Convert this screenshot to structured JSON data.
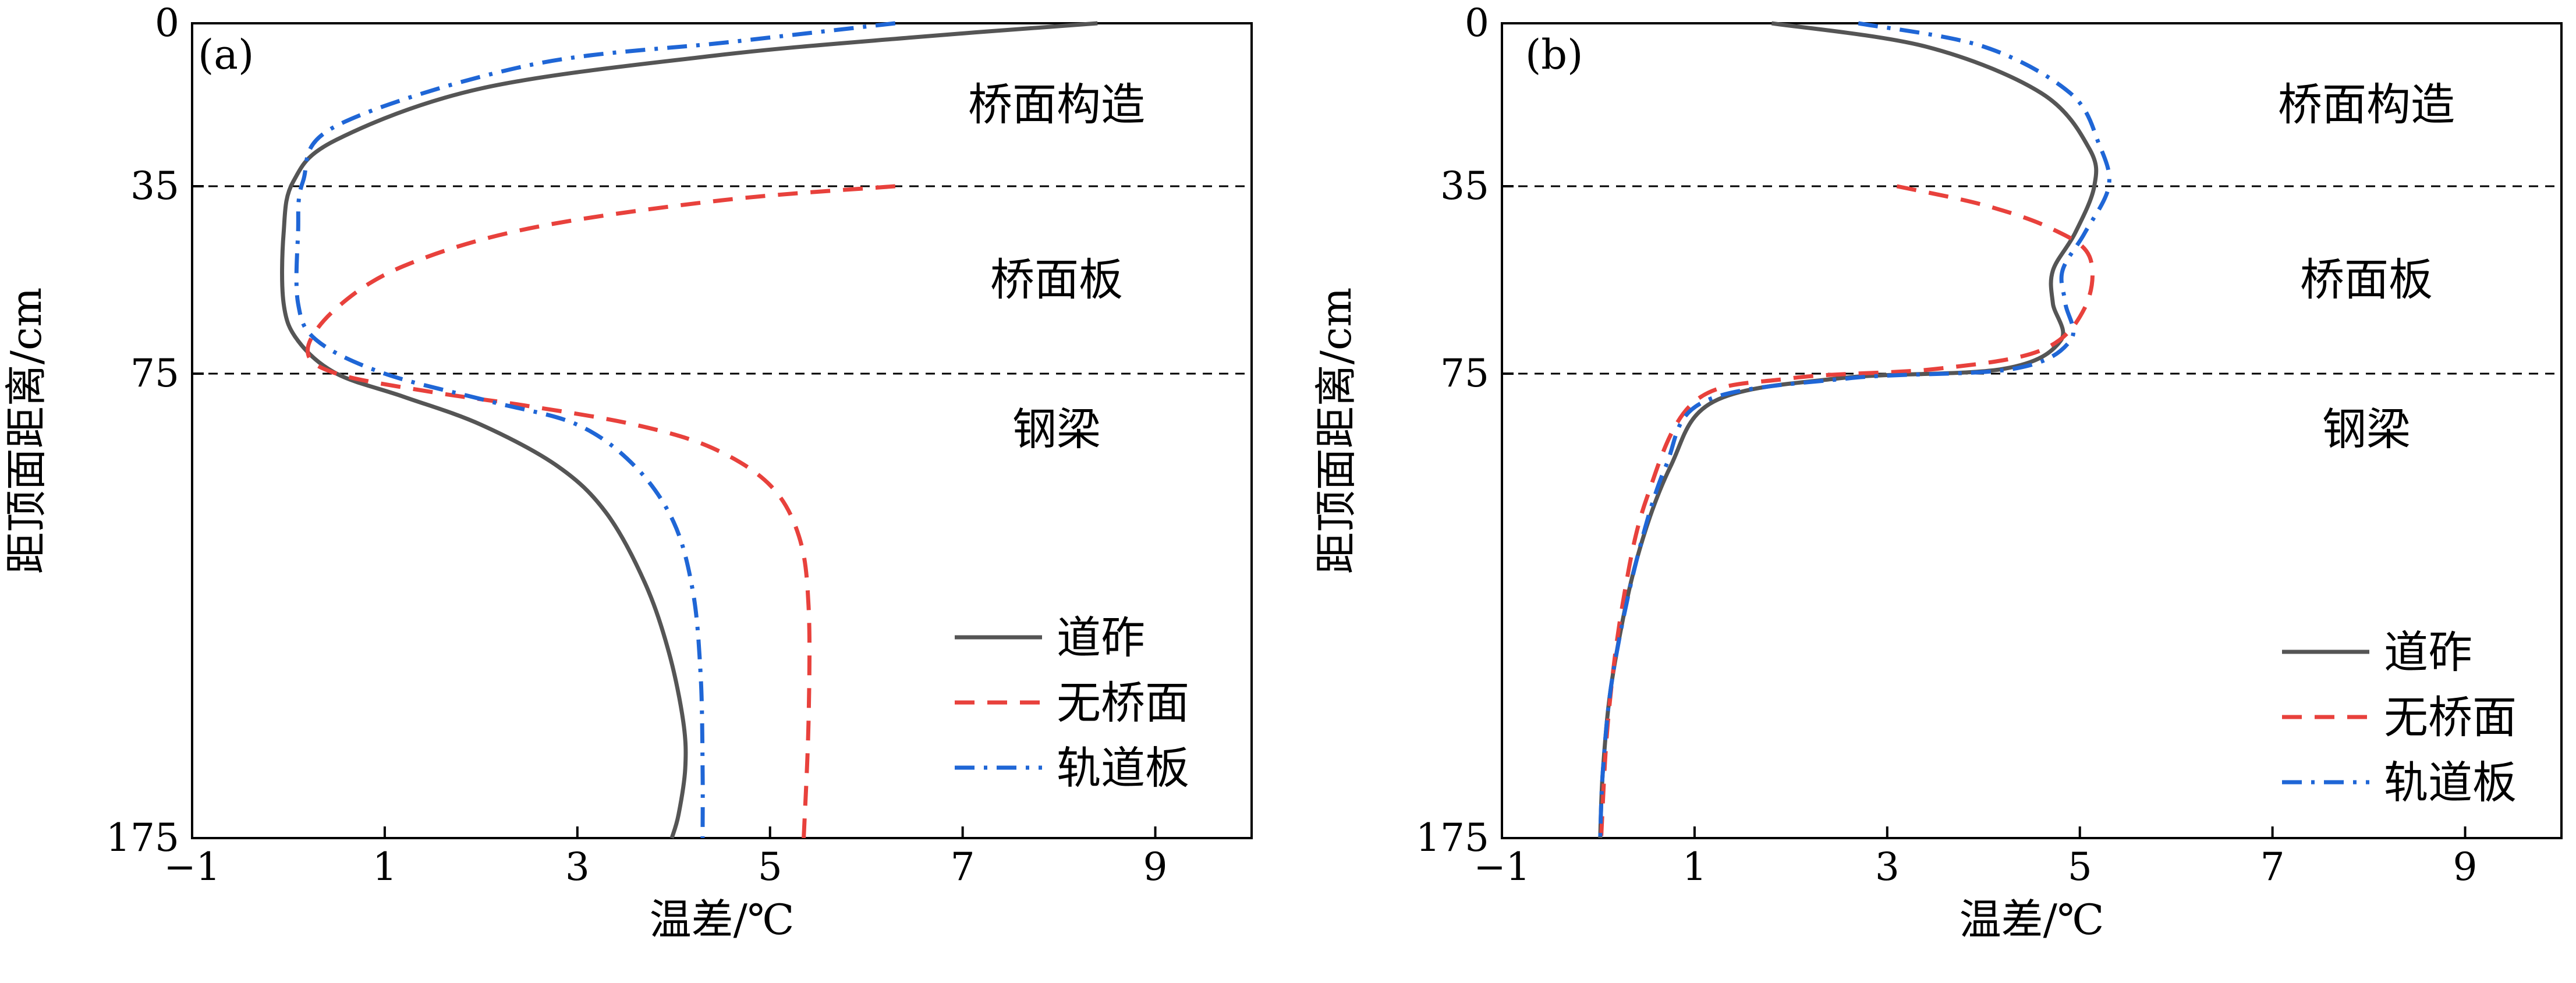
{
  "figure": {
    "y_axis_label": "距顶面距离/cm",
    "x_axis_label": "温差/℃"
  },
  "legend": {
    "items": [
      {
        "label": "道砟",
        "color": "#555555",
        "dash": "solid"
      },
      {
        "label": "无桥面",
        "color": "#e8413c",
        "dash": "dashed"
      },
      {
        "label": "轨道板",
        "color": "#1f66d6",
        "dash": "dashdot"
      }
    ]
  },
  "regions": [
    {
      "label": "桥面构造",
      "y": 17.5
    },
    {
      "label": "桥面板",
      "y": 55
    },
    {
      "label": "钢梁",
      "y": 87
    }
  ],
  "y_ticks": [
    {
      "label": "0",
      "depth": 0
    },
    {
      "label": "35",
      "depth": 35
    },
    {
      "label": "75",
      "depth": 75
    },
    {
      "label": "175",
      "depth": 175
    }
  ],
  "x_ticks": [
    "−1",
    "1",
    "3",
    "5",
    "7",
    "9"
  ],
  "boundaries": [
    35,
    75
  ],
  "chart_data": [
    {
      "panel": "(a)",
      "type": "line",
      "xlabel": "温差/℃",
      "ylabel": "距顶面距离/cm",
      "xlim": [
        -1,
        10
      ],
      "ylim": [
        175,
        0
      ],
      "series": [
        {
          "name": "道砟",
          "x": [
            8.4,
            6.5,
            4.4,
            2.0,
            0.5,
            0.05,
            -0.05,
            -0.05,
            0.1,
            0.5,
            1.2,
            2.0,
            2.8,
            3.3,
            3.7,
            3.95,
            4.1,
            4.12,
            4.05,
            3.98
          ],
          "y": [
            0,
            3,
            7,
            14,
            25,
            34,
            45,
            60,
            68,
            75,
            80,
            86,
            95,
            105,
            120,
            135,
            150,
            160,
            170,
            175
          ]
        },
        {
          "name": "无桥面",
          "x": [
            6.3,
            4.5,
            2.5,
            1.2,
            0.5,
            0.2,
            0.5,
            1.5,
            2.5,
            3.6,
            4.4,
            5.0,
            5.3,
            5.4,
            5.4,
            5.35
          ],
          "y": [
            35,
            38,
            44,
            52,
            61,
            70,
            75,
            79,
            82,
            86,
            91,
            99,
            110,
            125,
            150,
            175
          ]
        },
        {
          "name": "轨道板",
          "x": [
            6.3,
            4.6,
            2.5,
            0.5,
            0.15,
            0.1,
            0.1,
            0.3,
            1.0,
            2.1,
            3.0,
            3.6,
            4.0,
            4.2,
            4.28,
            4.3,
            4.3
          ],
          "y": [
            0,
            4,
            9,
            22,
            34,
            45,
            60,
            68,
            75,
            81,
            86,
            95,
            107,
            122,
            140,
            160,
            175
          ]
        }
      ]
    },
    {
      "panel": "(b)",
      "type": "line",
      "xlabel": "温差/℃",
      "ylabel": "距顶面距离/cm",
      "xlim": [
        -1,
        10
      ],
      "ylim": [
        175,
        0
      ],
      "series": [
        {
          "name": "道砟",
          "x": [
            1.8,
            3.4,
            4.6,
            5.1,
            5.15,
            4.95,
            4.72,
            4.72,
            4.8,
            4.2,
            2.5,
            1.2,
            0.75,
            0.4,
            0.15,
            0.05,
            0.02
          ],
          "y": [
            0,
            5,
            15,
            27,
            35,
            45,
            53,
            60,
            68,
            74,
            76,
            81,
            95,
            115,
            140,
            160,
            175
          ]
        },
        {
          "name": "无桥面",
          "x": [
            3.1,
            4.0,
            4.7,
            5.1,
            5.05,
            4.6,
            3.5,
            2.0,
            1.0,
            0.5,
            0.25,
            0.1,
            0.03
          ],
          "y": [
            35,
            39,
            44,
            50,
            61,
            70,
            74,
            76,
            81,
            102,
            125,
            150,
            175
          ]
        },
        {
          "name": "轨道板",
          "x": [
            2.7,
            4.0,
            4.9,
            5.2,
            5.3,
            5.05,
            4.82,
            4.85,
            4.9,
            4.3,
            2.6,
            1.1,
            0.7,
            0.4,
            0.15,
            0.05,
            0.02
          ],
          "y": [
            0,
            5,
            15,
            26,
            35,
            45,
            53,
            60,
            68,
            74,
            76,
            81,
            95,
            115,
            140,
            160,
            175
          ]
        }
      ]
    }
  ]
}
